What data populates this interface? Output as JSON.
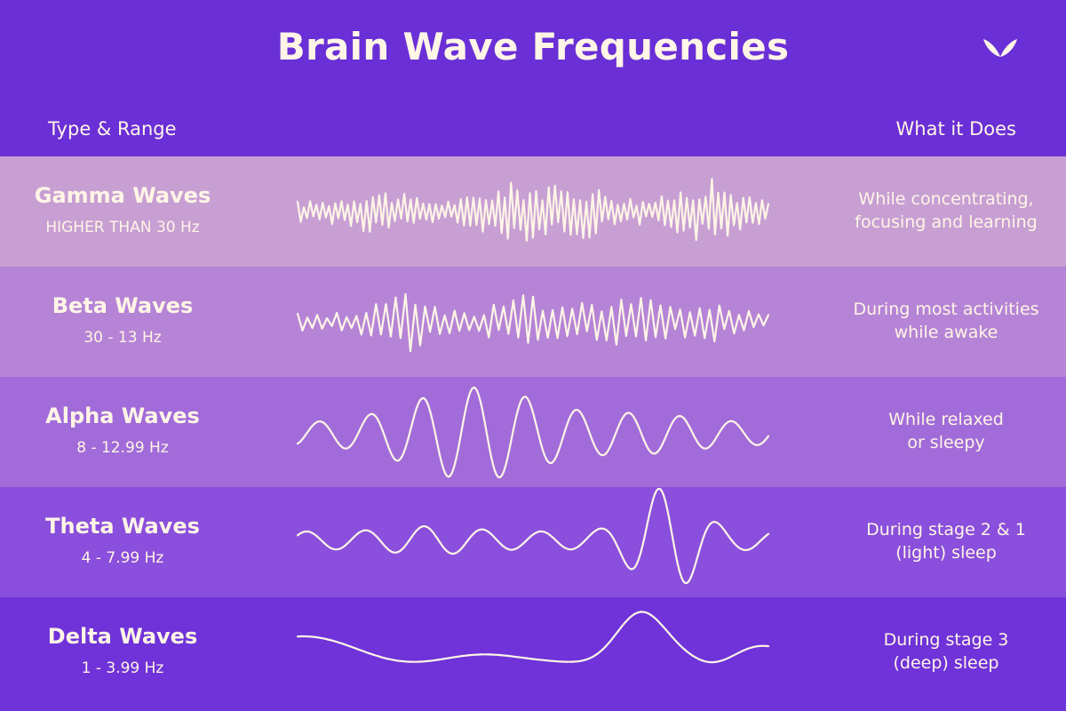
{
  "header": {
    "title": "Brain Wave Frequencies",
    "left_column": "Type & Range",
    "right_column": "What it Does",
    "logo_icon": "leaf-logo-icon"
  },
  "rows": [
    {
      "name": "Gamma Waves",
      "range": "HIGHER THAN 30 Hz",
      "desc_line1": "While concentrating,",
      "desc_line2": "focusing and learning",
      "color": "#c79fd3"
    },
    {
      "name": "Beta Waves",
      "range": "30 - 13 Hz",
      "desc_line1": "During most activities",
      "desc_line2": "while awake",
      "color": "#b584d6"
    },
    {
      "name": "Alpha Waves",
      "range": "8 - 12.99 Hz",
      "desc_line1": "While relaxed",
      "desc_line2": "or sleepy",
      "color": "#a16cd9"
    },
    {
      "name": "Theta Waves",
      "range": "4 - 7.99 Hz",
      "desc_line1": "During stage 2 & 1",
      "desc_line2": "(light) sleep",
      "color": "#8a4fdc"
    },
    {
      "name": "Delta Waves",
      "range": "1 - 3.99 Hz",
      "desc_line1": "During stage 3",
      "desc_line2": "(deep) sleep",
      "color": "#6f33d9"
    }
  ],
  "colors": {
    "background": "#6a2fd6",
    "text": "#fff5e6"
  }
}
